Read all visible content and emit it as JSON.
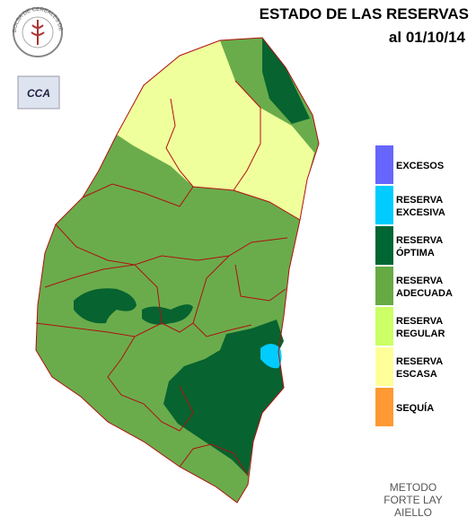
{
  "title": "ESTADO DE LAS RESERVAS",
  "date": "al 01/10/14",
  "logo": {
    "text": "BOLSA DE CEREALES DE ENTRE RIOS",
    "badge": "CCA"
  },
  "legend": [
    {
      "label": [
        "EXCESOS"
      ],
      "color": "#6666ff"
    },
    {
      "label": [
        "RESERVA",
        "EXCESIVA"
      ],
      "color": "#00ccff"
    },
    {
      "label": [
        "RESERVA",
        "ÓPTIMA"
      ],
      "color": "#006633"
    },
    {
      "label": [
        "RESERVA",
        "ADECUADA"
      ],
      "color": "#66aa44"
    },
    {
      "label": [
        "RESERVA",
        "REGULAR"
      ],
      "color": "#ccff66"
    },
    {
      "label": [
        "RESERVA",
        "ESCASA"
      ],
      "color": "#ffff99"
    },
    {
      "label": [
        "SEQUÍA"
      ],
      "color": "#ff9933"
    }
  ],
  "method": [
    "METODO",
    "FORTE LAY",
    "AIELLO"
  ]
}
